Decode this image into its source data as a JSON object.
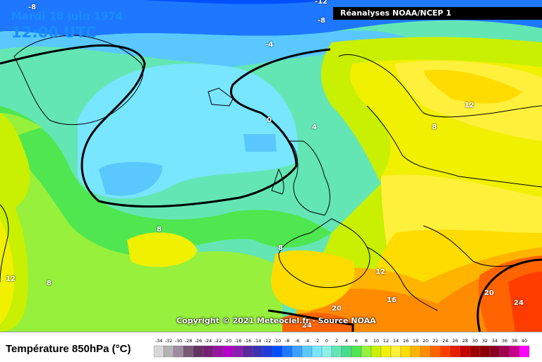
{
  "header": {
    "date": "Mardi 18 juin 1974",
    "time": "12:00 UTC",
    "source": "Réanalyses NOAA/NCEP 1"
  },
  "map": {
    "contour_labels": [
      "-12",
      "-8",
      "-8",
      "-4",
      "0",
      "4",
      "8",
      "8",
      "8",
      "8",
      "12",
      "12",
      "12",
      "16",
      "20",
      "20",
      "24",
      "24"
    ],
    "copyright": "Copyright © 2021 Meteociel.fr - Source NOAA"
  },
  "legend": {
    "title": "Température 850hPa (°C)",
    "scale_values": [
      "-34",
      "-32",
      "-30",
      "-28",
      "-26",
      "-24",
      "-22",
      "-20",
      "-18",
      "-16",
      "-14",
      "-12",
      "-10",
      "-8",
      "-6",
      "-4",
      "-2",
      "0",
      "2",
      "4",
      "6",
      "8",
      "10",
      "12",
      "14",
      "16",
      "18",
      "20",
      "22",
      "24",
      "26",
      "28",
      "30",
      "32",
      "34",
      "36",
      "38",
      "40"
    ],
    "scale_colors": [
      "#d8d8d8",
      "#b4b4b4",
      "#a08ca0",
      "#785a78",
      "#643264",
      "#781e78",
      "#9614a0",
      "#b400c8",
      "#8c1eb4",
      "#5a28a0",
      "#3c32b4",
      "#1e3cdc",
      "#0050ff",
      "#1e78ff",
      "#3ca0ff",
      "#5ac8ff",
      "#78e6ff",
      "#8cf0e6",
      "#64e6b4",
      "#46dc8c",
      "#50e650",
      "#96f03c",
      "#c8f000",
      "#f0f000",
      "#fff03c",
      "#ffdc00",
      "#ffb400",
      "#ff8c00",
      "#ff6400",
      "#ff3c00",
      "#e61e00",
      "#c80000",
      "#a00000",
      "#8c0000",
      "#8c0028",
      "#a00050",
      "#c8008c",
      "#ff00ff"
    ]
  }
}
